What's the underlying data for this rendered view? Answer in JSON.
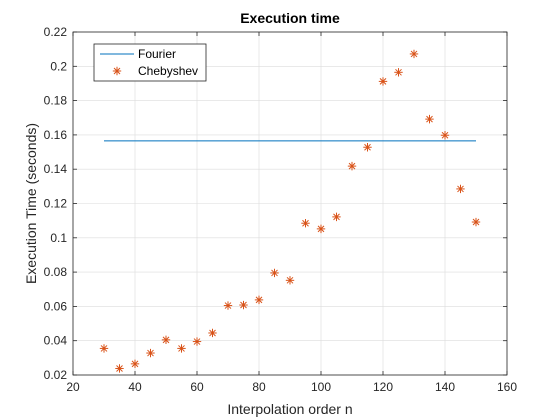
{
  "chart_data": {
    "type": "scatter",
    "title": "Execution time",
    "xlabel": "Interpolation order n",
    "ylabel": "Execution Time (seconds)",
    "xlim": [
      20,
      160
    ],
    "ylim": [
      0.02,
      0.22
    ],
    "xticks": [
      20,
      40,
      60,
      80,
      100,
      120,
      140,
      160
    ],
    "yticks": [
      0.02,
      0.04,
      0.06,
      0.08,
      0.1,
      0.12,
      0.14,
      0.16,
      0.18,
      0.2,
      0.22
    ],
    "xtick_labels": [
      "20",
      "40",
      "60",
      "80",
      "100",
      "120",
      "140",
      "160"
    ],
    "ytick_labels": [
      "0.02",
      "0.04",
      "0.06",
      "0.08",
      "0.1",
      "0.12",
      "0.14",
      "0.16",
      "0.18",
      "0.2",
      "0.22"
    ],
    "grid": true,
    "legend_position": "top-left",
    "series": [
      {
        "name": "Fourier",
        "kind": "line",
        "color": "#0072BD",
        "x": [
          30,
          150
        ],
        "y": [
          0.1565,
          0.1565
        ]
      },
      {
        "name": "Chebyshev",
        "kind": "marker",
        "marker": "asterisk",
        "color": "#D95319",
        "x": [
          30,
          35,
          40,
          45,
          50,
          55,
          60,
          65,
          70,
          75,
          80,
          85,
          90,
          95,
          100,
          105,
          110,
          115,
          120,
          125,
          130,
          135,
          140,
          145,
          150
        ],
        "y": [
          0.0355,
          0.0238,
          0.0265,
          0.0328,
          0.0405,
          0.0355,
          0.0395,
          0.0445,
          0.0605,
          0.0608,
          0.0638,
          0.0795,
          0.0752,
          0.1085,
          0.1052,
          0.1122,
          0.1418,
          0.1528,
          0.1912,
          0.1965,
          0.2072,
          0.1692,
          0.1598,
          0.1285,
          0.1092
        ]
      }
    ]
  }
}
